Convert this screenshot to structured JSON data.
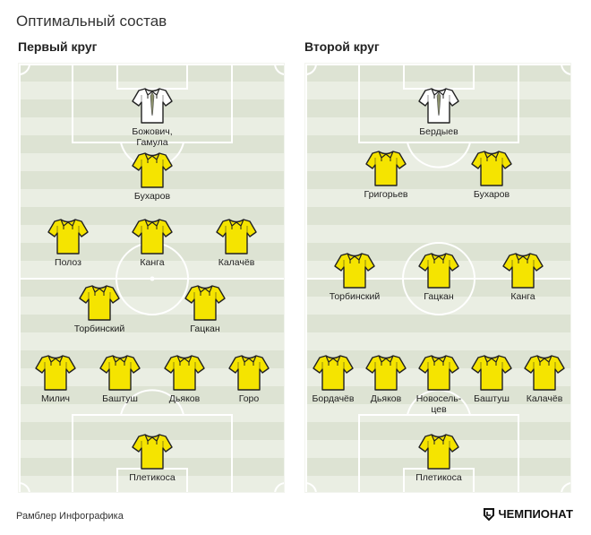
{
  "title": "Оптимальный состав",
  "footer": {
    "source": "Рамблер Инфографика",
    "brand": "ЧЕМПИОНАТ"
  },
  "colors": {
    "field_stripe_dark": "#dde3d3",
    "field_stripe_light": "#eaeee3",
    "shirt_outfield": "#f5e400",
    "shirt_goalkeeper": "#ffffff",
    "shirt_outline": "#222222"
  },
  "rounds": [
    {
      "title": "Первый круг",
      "rows": [
        {
          "players": [
            {
              "name": "Божович,\nГамула",
              "kit": "goalkeeper"
            }
          ]
        },
        {
          "players": [
            {
              "name": "Бухаров",
              "kit": "outfield"
            }
          ]
        },
        {
          "players": [
            {
              "name": "Полоз",
              "kit": "outfield"
            },
            {
              "name": "Канга",
              "kit": "outfield"
            },
            {
              "name": "Калачёв",
              "kit": "outfield"
            }
          ]
        },
        {
          "players": [
            {
              "name": "Торбинский",
              "kit": "outfield"
            },
            {
              "name": "Гацкан",
              "kit": "outfield"
            }
          ]
        },
        {
          "players": [
            {
              "name": "Милич",
              "kit": "outfield"
            },
            {
              "name": "Баштуш",
              "kit": "outfield"
            },
            {
              "name": "Дьяков",
              "kit": "outfield"
            },
            {
              "name": "Горо",
              "kit": "outfield"
            }
          ]
        },
        {
          "players": [
            {
              "name": "Плетикоса",
              "kit": "outfield"
            }
          ]
        }
      ]
    },
    {
      "title": "Второй круг",
      "rows": [
        {
          "players": [
            {
              "name": "Бердыев",
              "kit": "goalkeeper"
            }
          ]
        },
        {
          "players": [
            {
              "name": "Григорьев",
              "kit": "outfield"
            },
            {
              "name": "Бухаров",
              "kit": "outfield"
            }
          ]
        },
        {
          "players": [
            {
              "name": "Торбинский",
              "kit": "outfield"
            },
            {
              "name": "Гацкан",
              "kit": "outfield"
            },
            {
              "name": "Канга",
              "kit": "outfield"
            }
          ]
        },
        {
          "players": [
            {
              "name": "Бордачёв",
              "kit": "outfield"
            },
            {
              "name": "Дьяков",
              "kit": "outfield"
            },
            {
              "name": "Новосель-\nцев",
              "kit": "outfield"
            },
            {
              "name": "Баштуш",
              "kit": "outfield"
            },
            {
              "name": "Калачёв",
              "kit": "outfield"
            }
          ]
        },
        {
          "players": [
            {
              "name": "Плетикоса",
              "kit": "outfield"
            }
          ]
        }
      ]
    }
  ]
}
